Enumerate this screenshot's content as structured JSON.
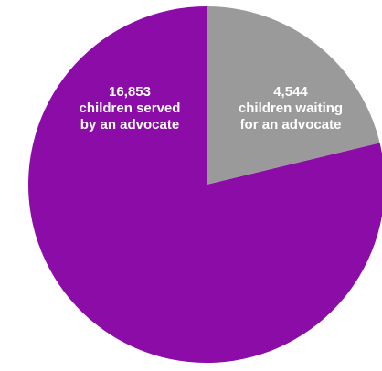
{
  "chart_data": {
    "type": "pie",
    "title": "",
    "slices": [
      {
        "value": 16853,
        "label_lines": [
          "16,853",
          "children served",
          "by an advocate"
        ],
        "color": "#8c0ca8"
      },
      {
        "value": 4544,
        "label_lines": [
          "4,544",
          "children waiting",
          "for an advocate"
        ],
        "color": "#9a9a9a"
      }
    ],
    "start_angle_deg": 0,
    "direction": "counterclockwise"
  }
}
